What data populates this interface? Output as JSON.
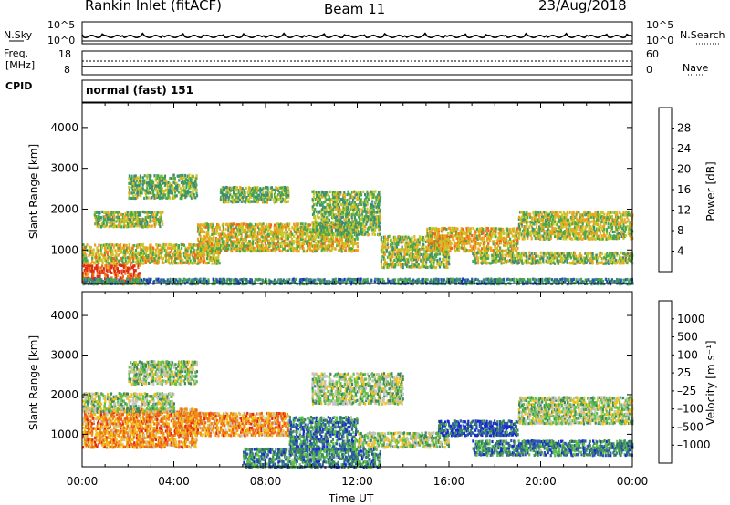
{
  "header": {
    "station": "Rankin Inlet (fitACF)",
    "beam": "Beam 11",
    "date": "23/Aug/2018"
  },
  "top_panels": {
    "nsky_label": "N.Sky",
    "nsearch_label": "N.Search",
    "nsky_ticks": [
      "10^5",
      "10^0"
    ],
    "nsearch_ticks": [
      "10^5",
      "10^0"
    ],
    "freq_label_1": "Freq.",
    "freq_label_2": "[MHz]",
    "freq_ticks": [
      "18",
      "8"
    ],
    "nave_label": "Nave",
    "nave_ticks": [
      "60",
      "0"
    ],
    "cpid_label": "CPID",
    "cpid_value": "normal (fast) 151"
  },
  "chart_data": [
    {
      "type": "heatmap",
      "quantity": "Power",
      "ylabel": "Slant Range [km]",
      "ylim": [
        180,
        4600
      ],
      "yticks": [
        "1000",
        "2000",
        "3000",
        "4000"
      ],
      "colorbar_label": "Power [dB]",
      "colorbar_ticks": [
        "4",
        "8",
        "12",
        "16",
        "20",
        "24",
        "28"
      ],
      "colors": [
        "#1a2acc",
        "#2a5aa8",
        "#3c8c7a",
        "#4aa84a",
        "#c6c628",
        "#f0a020",
        "#ec6a1c",
        "#e02c14"
      ],
      "regions": [
        {
          "t0": 0,
          "t1": 2.5,
          "r0": 200,
          "r1": 700,
          "level": 0.9
        },
        {
          "t0": 0,
          "t1": 6,
          "r0": 700,
          "r1": 1200,
          "level": 0.6
        },
        {
          "t0": 0.5,
          "t1": 3.5,
          "r0": 1600,
          "r1": 2000,
          "level": 0.5
        },
        {
          "t0": 2,
          "t1": 5,
          "r0": 2300,
          "r1": 2900,
          "level": 0.45
        },
        {
          "t0": 5,
          "t1": 12,
          "r0": 1000,
          "r1": 1700,
          "level": 0.6
        },
        {
          "t0": 6,
          "t1": 9,
          "r0": 2200,
          "r1": 2600,
          "level": 0.45
        },
        {
          "t0": 10,
          "t1": 13,
          "r0": 1400,
          "r1": 2500,
          "level": 0.45
        },
        {
          "t0": 13,
          "t1": 16,
          "r0": 600,
          "r1": 1400,
          "level": 0.5
        },
        {
          "t0": 15,
          "t1": 19,
          "r0": 1000,
          "r1": 1600,
          "level": 0.65
        },
        {
          "t0": 19,
          "t1": 24,
          "r0": 1300,
          "r1": 2000,
          "level": 0.55
        },
        {
          "t0": 17,
          "t1": 24,
          "r0": 700,
          "r1": 1000,
          "level": 0.5
        },
        {
          "t0": 0,
          "t1": 24,
          "r0": 200,
          "r1": 350,
          "level": 0.3
        }
      ]
    },
    {
      "type": "heatmap",
      "quantity": "Velocity",
      "ylabel": "Slant Range [km]",
      "xlabel": "Time UT",
      "ylim": [
        180,
        4600
      ],
      "yticks": [
        "1000",
        "2000",
        "3000",
        "4000"
      ],
      "xticks": [
        "00:00",
        "04:00",
        "08:00",
        "12:00",
        "16:00",
        "20:00",
        "00:00"
      ],
      "colorbar_label": "Velocity [m s⁻¹]",
      "colorbar_ticks": [
        "1000",
        "500",
        "100",
        "25",
        "–25",
        "–100",
        "–500",
        "–1000"
      ],
      "colors": [
        "#1a2ad0",
        "#2c5aa4",
        "#3e8a5a",
        "#5ec24a",
        "#c4c4bc",
        "#f0c020",
        "#f09010",
        "#f06018",
        "#e82014"
      ],
      "regions": [
        {
          "t0": 0,
          "t1": 5,
          "r0": 700,
          "r1": 1700,
          "level": 0.72
        },
        {
          "t0": 4,
          "t1": 9,
          "r0": 1000,
          "r1": 1600,
          "level": 0.72
        },
        {
          "t0": 0,
          "t1": 4,
          "r0": 1600,
          "r1": 2100,
          "level": 0.45
        },
        {
          "t0": 2,
          "t1": 5,
          "r0": 2300,
          "r1": 2900,
          "level": 0.45
        },
        {
          "t0": 9,
          "t1": 12,
          "r0": 600,
          "r1": 1500,
          "level": 0.25
        },
        {
          "t0": 12,
          "t1": 16,
          "r0": 700,
          "r1": 1100,
          "level": 0.45
        },
        {
          "t0": 15.5,
          "t1": 19,
          "r0": 1000,
          "r1": 1400,
          "level": 0.15
        },
        {
          "t0": 19,
          "t1": 24,
          "r0": 1300,
          "r1": 2000,
          "level": 0.45
        },
        {
          "t0": 7,
          "t1": 13,
          "r0": 200,
          "r1": 700,
          "level": 0.25
        },
        {
          "t0": 17,
          "t1": 24,
          "r0": 500,
          "r1": 900,
          "level": 0.25
        },
        {
          "t0": 10,
          "t1": 14,
          "r0": 1800,
          "r1": 2600,
          "level": 0.45
        }
      ]
    }
  ]
}
